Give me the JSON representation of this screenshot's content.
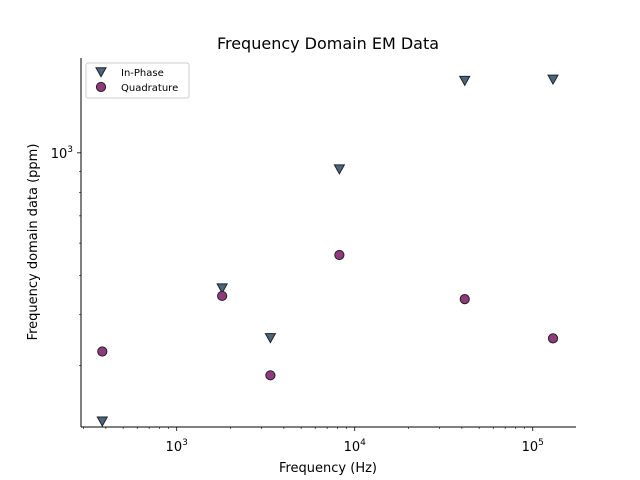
{
  "chart_data": {
    "type": "scatter",
    "title": "Frequency Domain EM Data",
    "xlabel": "Frequency (Hz)",
    "ylabel": "Frequency domain data (ppm)",
    "xscale": "log",
    "yscale": "log",
    "xlim": [
      290,
      175000
    ],
    "ylim": [
      212,
      1710
    ],
    "grid": false,
    "legend_position": "top-left",
    "x_ticks": [
      {
        "value": 1000,
        "base": "10",
        "exp": "3"
      },
      {
        "value": 10000,
        "base": "10",
        "exp": "4"
      },
      {
        "value": 100000,
        "base": "10",
        "exp": "5"
      }
    ],
    "y_ticks": [
      {
        "value": 1000,
        "base": "10",
        "exp": "3"
      }
    ],
    "series": [
      {
        "name": "In-Phase",
        "marker": "triangle-down",
        "color": "#4a6580",
        "x": [
          382,
          1800,
          3360,
          8200,
          41500,
          130000
        ],
        "y": [
          219,
          465,
          351,
          912,
          1505,
          1515
        ]
      },
      {
        "name": "Quadrature",
        "marker": "circle",
        "color": "#8e3a7c",
        "x": [
          382,
          1800,
          3360,
          8200,
          41500,
          130000
        ],
        "y": [
          325,
          445,
          284,
          561,
          437,
          350
        ]
      }
    ]
  }
}
